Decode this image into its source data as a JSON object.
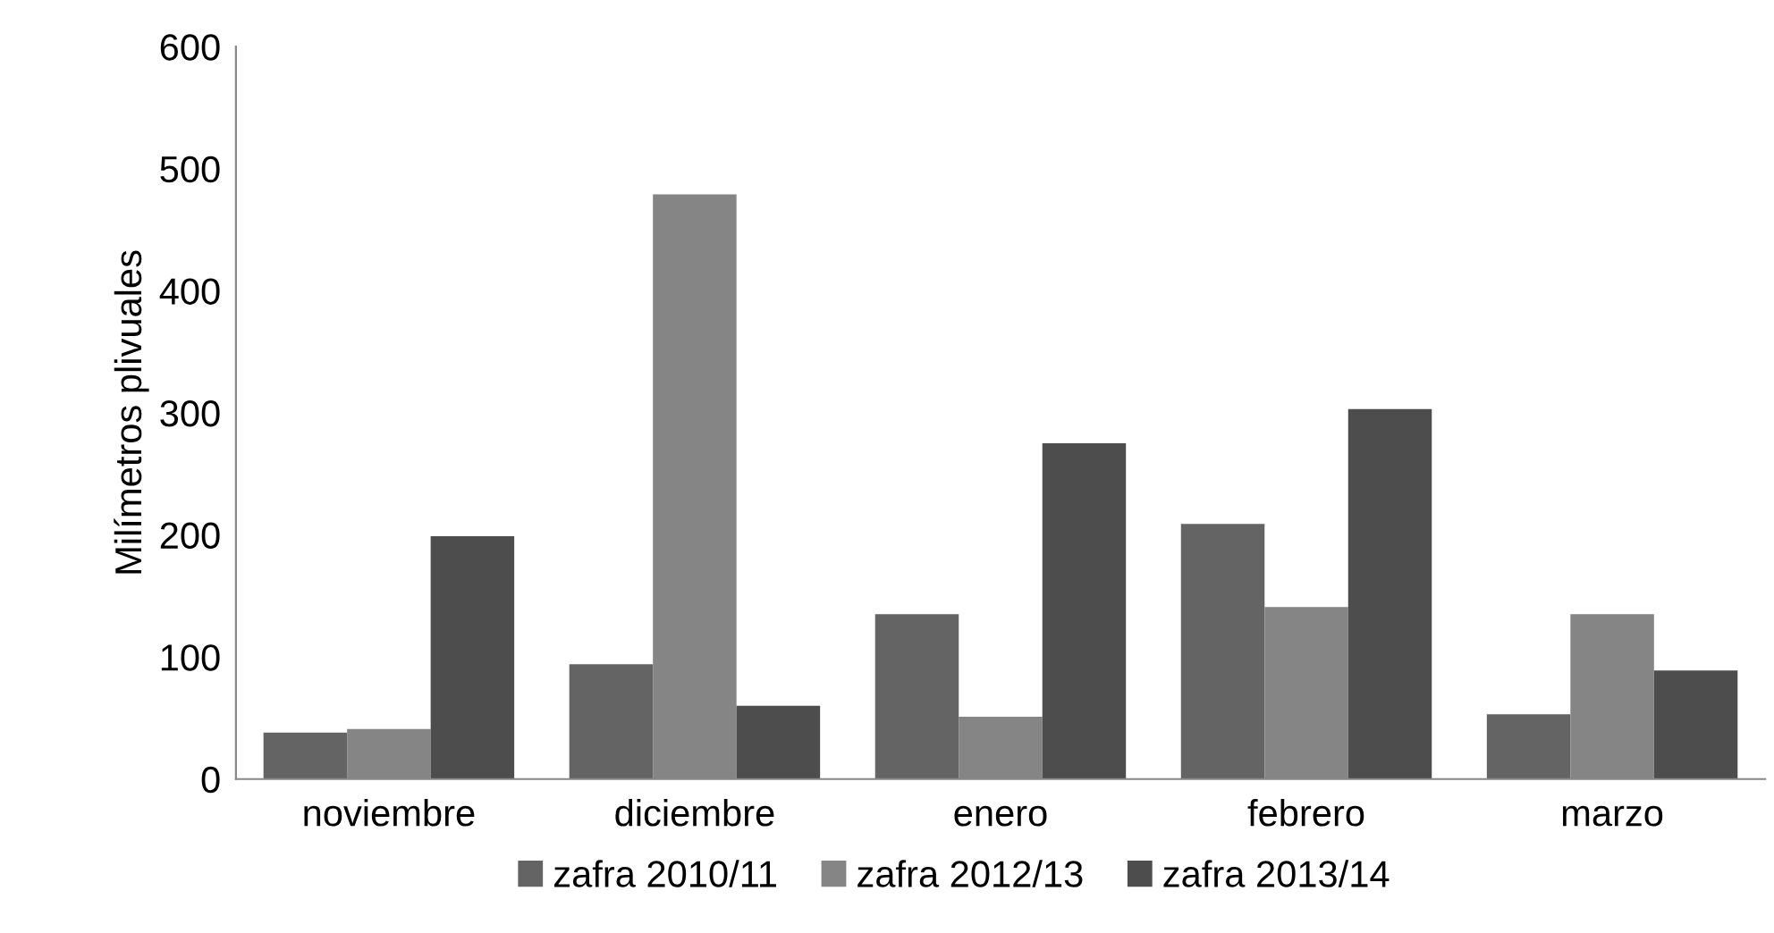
{
  "chart_data": {
    "type": "bar",
    "ylabel": "Milímetros plivuales",
    "categories": [
      "noviembre",
      "diciembre",
      "enero",
      "febrero",
      "marzo"
    ],
    "series": [
      {
        "name": "zafra 2010/11",
        "color": "#646464",
        "values": [
          38,
          94,
          135,
          209,
          53
        ]
      },
      {
        "name": "zafra 2012/13",
        "color": "#858585",
        "values": [
          41,
          479,
          51,
          141,
          135
        ]
      },
      {
        "name": "zafra 2013/14",
        "color": "#4d4d4d",
        "values": [
          199,
          60,
          275,
          303,
          89
        ]
      }
    ],
    "ylim": [
      0,
      600
    ],
    "yticks": [
      0,
      100,
      200,
      300,
      400,
      500,
      600
    ],
    "grid": false,
    "legend": "bottom"
  }
}
